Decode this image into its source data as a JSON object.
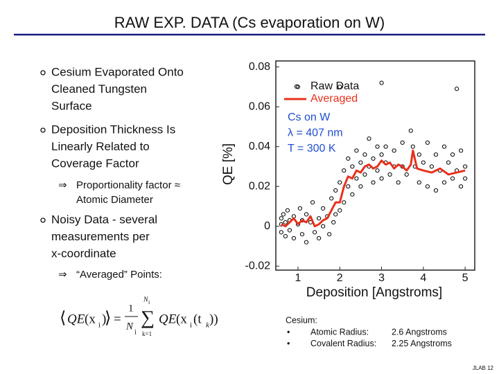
{
  "title": "RAW EXP. DATA (Cs evaporation on W)",
  "bullets": [
    {
      "lines": [
        "Cesium Evaporated Onto",
        "Cleaned Tungsten",
        "Surface"
      ]
    },
    {
      "lines": [
        "Deposition Thickness Is",
        "Linearly Related to",
        "Coverage Factor"
      ]
    },
    {
      "lines": [
        "Noisy Data - several",
        "measurements per",
        "x-coordinate"
      ]
    }
  ],
  "subpoints": [
    {
      "arrow": "⇒",
      "lines": [
        "Proportionality factor ≈",
        "Atomic Diameter"
      ]
    },
    {
      "arrow": "⇒",
      "lines": [
        "“Averaged” Points:"
      ]
    }
  ],
  "formula": [
    "⟨",
    "QE",
    "(x",
    "i",
    ")",
    "⟩",
    "=",
    "1",
    "N",
    "i",
    "N",
    "i",
    "∑",
    "k=1",
    "QE",
    "(x",
    "i",
    "(t",
    "k",
    "))"
  ],
  "notes": {
    "heading": "Cesium:",
    "rows": [
      [
        "•",
        "Atomic Radius:",
        "2.6 Angstroms"
      ],
      [
        "•",
        "Covalent Radius:",
        "2.25 Angstroms"
      ]
    ]
  },
  "footer": "JLAB 12",
  "chart_data": {
    "type": "scatter",
    "xlabel": "Deposition [Angstroms]",
    "ylabel": "QE [%]",
    "xlim": [
      0.47,
      5.23
    ],
    "ylim": [
      -0.022,
      0.083
    ],
    "xticks": [
      1,
      2,
      3,
      4,
      5
    ],
    "yticks": [
      -0.02,
      0,
      0.02,
      0.04,
      0.06,
      0.08
    ],
    "annotations": [
      "Cs on W",
      "λ = 407 nm",
      "T = 300 K"
    ],
    "annotation_color": "#1f4fd0",
    "series": [
      {
        "name": "Raw Data",
        "type": "scatter",
        "color": "#000000",
        "x": [
          0.6,
          0.6,
          0.6,
          0.65,
          0.7,
          0.7,
          0.75,
          0.8,
          0.8,
          0.9,
          0.9,
          1.0,
          1.0,
          1.05,
          1.1,
          1.1,
          1.2,
          1.2,
          1.3,
          1.35,
          1.4,
          1.5,
          1.5,
          1.6,
          1.6,
          1.7,
          1.75,
          1.8,
          1.85,
          1.9,
          1.9,
          2.0,
          2.0,
          2.0,
          2.1,
          2.1,
          2.2,
          2.2,
          2.3,
          2.3,
          2.4,
          2.4,
          2.5,
          2.5,
          2.6,
          2.6,
          2.7,
          2.7,
          2.8,
          2.8,
          2.9,
          2.9,
          3.0,
          3.0,
          3.0,
          3.1,
          3.1,
          3.2,
          3.3,
          3.3,
          3.4,
          3.5,
          3.5,
          3.6,
          3.7,
          3.75,
          3.8,
          3.9,
          3.9,
          4.0,
          4.1,
          4.1,
          4.2,
          4.3,
          4.3,
          4.4,
          4.5,
          4.5,
          4.6,
          4.7,
          4.7,
          4.8,
          4.8,
          4.9,
          4.9,
          5.0,
          5.0
        ],
        "values": [
          0.001,
          -0.003,
          0.004,
          0.006,
          -0.005,
          0.002,
          0.008,
          -0.002,
          0.003,
          0.005,
          -0.006,
          0.001,
          0.07,
          0.009,
          -0.004,
          0.003,
          0.006,
          -0.008,
          0.002,
          0.012,
          -0.003,
          0.004,
          -0.006,
          0.0,
          0.009,
          0.005,
          -0.004,
          0.014,
          0.002,
          0.018,
          0.006,
          0.07,
          0.022,
          0.008,
          0.028,
          0.012,
          0.034,
          0.02,
          0.03,
          0.016,
          0.038,
          0.024,
          0.032,
          0.02,
          0.036,
          0.026,
          0.044,
          0.03,
          0.034,
          0.022,
          0.04,
          0.028,
          0.072,
          0.036,
          0.024,
          0.032,
          0.04,
          0.026,
          0.038,
          0.03,
          0.022,
          0.042,
          0.03,
          0.026,
          0.048,
          0.04,
          0.03,
          0.036,
          0.022,
          0.032,
          0.042,
          0.02,
          0.03,
          0.036,
          0.018,
          0.028,
          0.04,
          0.022,
          0.032,
          0.024,
          0.036,
          0.069,
          0.028,
          0.02,
          0.038,
          0.03,
          0.024
        ]
      },
      {
        "name": "Averaged",
        "type": "line",
        "color": "#e8301c",
        "x": [
          0.6,
          0.7,
          0.8,
          0.9,
          1.0,
          1.1,
          1.2,
          1.3,
          1.4,
          1.5,
          1.6,
          1.7,
          1.8,
          1.9,
          2.0,
          2.1,
          2.2,
          2.3,
          2.4,
          2.5,
          2.6,
          2.7,
          2.8,
          2.9,
          3.0,
          3.1,
          3.2,
          3.3,
          3.4,
          3.5,
          3.6,
          3.7,
          3.75,
          3.85,
          4.0,
          4.2,
          4.4,
          4.6,
          4.8,
          5.0
        ],
        "values": [
          0.001,
          0.0,
          0.002,
          0.004,
          0.001,
          0.003,
          0.002,
          0.005,
          0.0,
          0.001,
          0.003,
          0.004,
          0.008,
          0.012,
          0.012,
          0.02,
          0.025,
          0.024,
          0.028,
          0.027,
          0.03,
          0.031,
          0.029,
          0.03,
          0.033,
          0.031,
          0.032,
          0.029,
          0.031,
          0.03,
          0.028,
          0.031,
          0.038,
          0.029,
          0.028,
          0.027,
          0.029,
          0.026,
          0.027,
          0.028
        ]
      }
    ]
  }
}
